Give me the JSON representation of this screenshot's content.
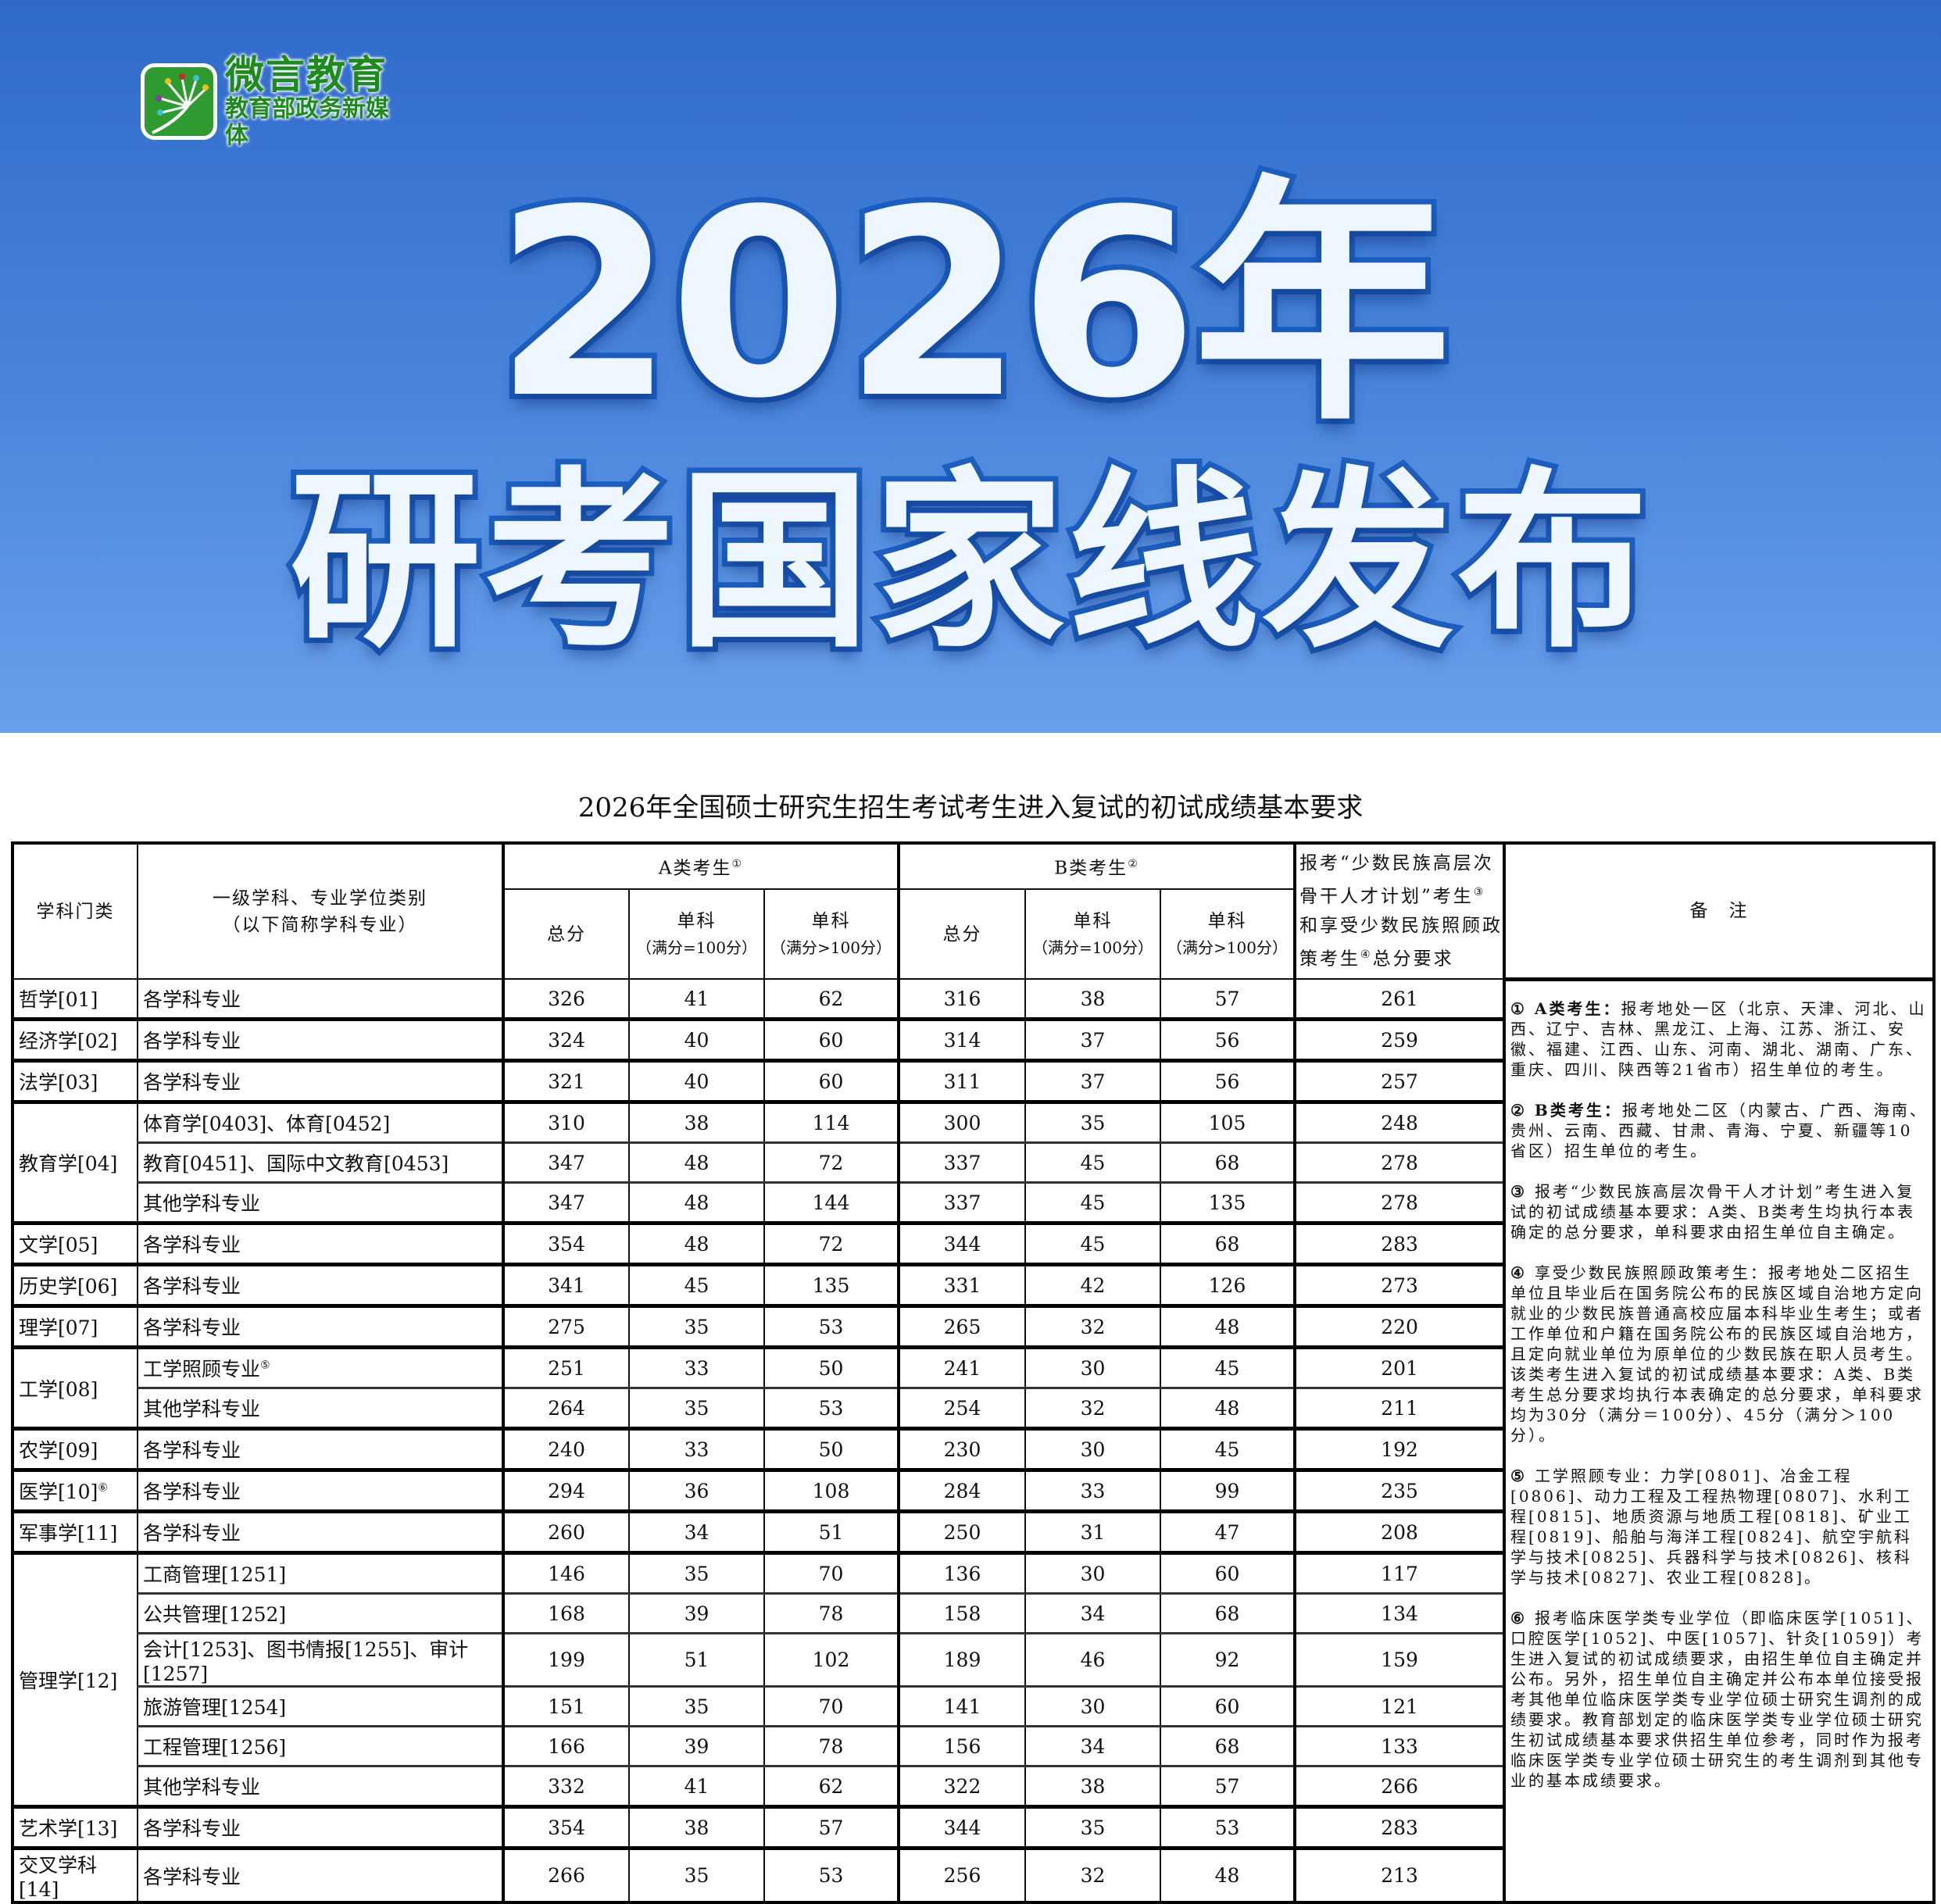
{
  "banner": {
    "logo": {
      "name": "微言教育",
      "tagline": "教育部政务新媒体"
    },
    "title_line1": "2026年",
    "title_line2": "研考国家线发布",
    "colors": {
      "background_top": "#2f6acb",
      "background_bottom": "#6aa0ea",
      "title_fill": "#eef7ff",
      "title_stroke": "#1d5fc0",
      "logo_green": "#2f9a2f"
    }
  },
  "table": {
    "title": "2026年全国硕士研究生招生考试考生进入复试的初试成绩基本要求",
    "headers": {
      "category": "学科门类",
      "subject_line1": "一级学科、专业学位类别",
      "subject_line2": "（以下简称学科专业）",
      "group_a": "A类考生",
      "group_a_sup": "①",
      "group_b": "B类考生",
      "group_b_sup": "②",
      "total": "总分",
      "single": "单科",
      "single_eq100": "（满分=100分）",
      "single_gt100": "（满分>100分）",
      "minority_p1": "报考“少数民族高层次骨干人才计划”考生",
      "minority_sup1": "③",
      "minority_p2": "和享受少数民族照顾政策考生",
      "minority_sup2": "④",
      "minority_p3": "总分要求",
      "notes": "备　注"
    },
    "groups": [
      {
        "category": "哲学[01]",
        "rows": [
          {
            "subject": "各学科专业",
            "values": [
              326,
              41,
              62,
              316,
              38,
              57,
              261
            ]
          }
        ]
      },
      {
        "category": "经济学[02]",
        "rows": [
          {
            "subject": "各学科专业",
            "values": [
              324,
              40,
              60,
              314,
              37,
              56,
              259
            ]
          }
        ]
      },
      {
        "category": "法学[03]",
        "rows": [
          {
            "subject": "各学科专业",
            "values": [
              321,
              40,
              60,
              311,
              37,
              56,
              257
            ]
          }
        ]
      },
      {
        "category": "教育学[04]",
        "rows": [
          {
            "subject": "体育学[0403]、体育[0452]",
            "values": [
              310,
              38,
              114,
              300,
              35,
              105,
              248
            ]
          },
          {
            "subject": "教育[0451]、国际中文教育[0453]",
            "values": [
              347,
              48,
              72,
              337,
              45,
              68,
              278
            ]
          },
          {
            "subject": "其他学科专业",
            "values": [
              347,
              48,
              144,
              337,
              45,
              135,
              278
            ]
          }
        ]
      },
      {
        "category": "文学[05]",
        "rows": [
          {
            "subject": "各学科专业",
            "values": [
              354,
              48,
              72,
              344,
              45,
              68,
              283
            ]
          }
        ]
      },
      {
        "category": "历史学[06]",
        "rows": [
          {
            "subject": "各学科专业",
            "values": [
              341,
              45,
              135,
              331,
              42,
              126,
              273
            ]
          }
        ]
      },
      {
        "category": "理学[07]",
        "rows": [
          {
            "subject": "各学科专业",
            "values": [
              275,
              35,
              53,
              265,
              32,
              48,
              220
            ]
          }
        ]
      },
      {
        "category": "工学[08]",
        "rows": [
          {
            "subject": "工学照顾专业",
            "subject_sup": "⑤",
            "values": [
              251,
              33,
              50,
              241,
              30,
              45,
              201
            ]
          },
          {
            "subject": "其他学科专业",
            "values": [
              264,
              35,
              53,
              254,
              32,
              48,
              211
            ]
          }
        ]
      },
      {
        "category": "农学[09]",
        "rows": [
          {
            "subject": "各学科专业",
            "values": [
              240,
              33,
              50,
              230,
              30,
              45,
              192
            ]
          }
        ]
      },
      {
        "category": "医学[10]",
        "category_sup": "⑥",
        "rows": [
          {
            "subject": "各学科专业",
            "values": [
              294,
              36,
              108,
              284,
              33,
              99,
              235
            ]
          }
        ]
      },
      {
        "category": "军事学[11]",
        "rows": [
          {
            "subject": "各学科专业",
            "values": [
              260,
              34,
              51,
              250,
              31,
              47,
              208
            ]
          }
        ]
      },
      {
        "category": "管理学[12]",
        "rows": [
          {
            "subject": "工商管理[1251]",
            "values": [
              146,
              35,
              70,
              136,
              30,
              60,
              117
            ]
          },
          {
            "subject": "公共管理[1252]",
            "values": [
              168,
              39,
              78,
              158,
              34,
              68,
              134
            ]
          },
          {
            "subject": "会计[1253]、图书情报[1255]、审计[1257]",
            "values": [
              199,
              51,
              102,
              189,
              46,
              92,
              159
            ]
          },
          {
            "subject": "旅游管理[1254]",
            "values": [
              151,
              35,
              70,
              141,
              30,
              60,
              121
            ]
          },
          {
            "subject": "工程管理[1256]",
            "values": [
              166,
              39,
              78,
              156,
              34,
              68,
              133
            ]
          },
          {
            "subject": "其他学科专业",
            "values": [
              332,
              41,
              62,
              322,
              38,
              57,
              266
            ]
          }
        ]
      },
      {
        "category": "艺术学[13]",
        "rows": [
          {
            "subject": "各学科专业",
            "values": [
              354,
              38,
              57,
              344,
              35,
              53,
              283
            ]
          }
        ]
      },
      {
        "category": "交叉学科[14]",
        "rows": [
          {
            "subject": "各学科专业",
            "values": [
              266,
              35,
              53,
              256,
              32,
              48,
              213
            ]
          }
        ]
      }
    ],
    "notes": [
      {
        "lead": "① A类考生：",
        "text": "报考地处一区（北京、天津、河北、山西、辽宁、吉林、黑龙江、上海、江苏、浙江、安徽、福建、江西、山东、河南、湖北、湖南、广东、重庆、四川、陕西等21省市）招生单位的考生。"
      },
      {
        "lead": "② B类考生：",
        "text": "报考地处二区（内蒙古、广西、海南、贵州、云南、西藏、甘肃、青海、宁夏、新疆等10省区）招生单位的考生。"
      },
      {
        "lead": "③ ",
        "text": "报考“少数民族高层次骨干人才计划”考生进入复试的初试成绩基本要求：A类、B类考生均执行本表确定的总分要求，单科要求由招生单位自主确定。"
      },
      {
        "lead": "④ ",
        "text": "享受少数民族照顾政策考生：报考地处二区招生单位且毕业后在国务院公布的民族区域自治地方定向就业的少数民族普通高校应届本科毕业生考生；或者工作单位和户籍在国务院公布的民族区域自治地方，且定向就业单位为原单位的少数民族在职人员考生。该类考生进入复试的初试成绩基本要求：A类、B类考生总分要求均执行本表确定的总分要求，单科要求均为30分（满分＝100分）、45分（满分＞100分）。"
      },
      {
        "lead": "⑤ ",
        "text": "工学照顾专业：力学[0801]、冶金工程[0806]、动力工程及工程热物理[0807]、水利工程[0815]、地质资源与地质工程[0818]、矿业工程[0819]、船舶与海洋工程[0824]、航空宇航科学与技术[0825]、兵器科学与技术[0826]、核科学与技术[0827]、农业工程[0828]。"
      },
      {
        "lead": "⑥ ",
        "text": "报考临床医学类专业学位（即临床医学[1051]、口腔医学[1052]、中医[1057]、针灸[1059]）考生进入复试的初试成绩要求，由招生单位自主确定并公布。另外，招生单位自主确定并公布本单位接受报考其他单位临床医学类专业学位硕士研究生调剂的成绩要求。教育部划定的临床医学类专业学位硕士研究生初试成绩基本要求供招生单位参考，同时作为报考临床医学类专业学位硕士研究生的考生调剂到其他专业的基本成绩要求。"
      }
    ]
  }
}
